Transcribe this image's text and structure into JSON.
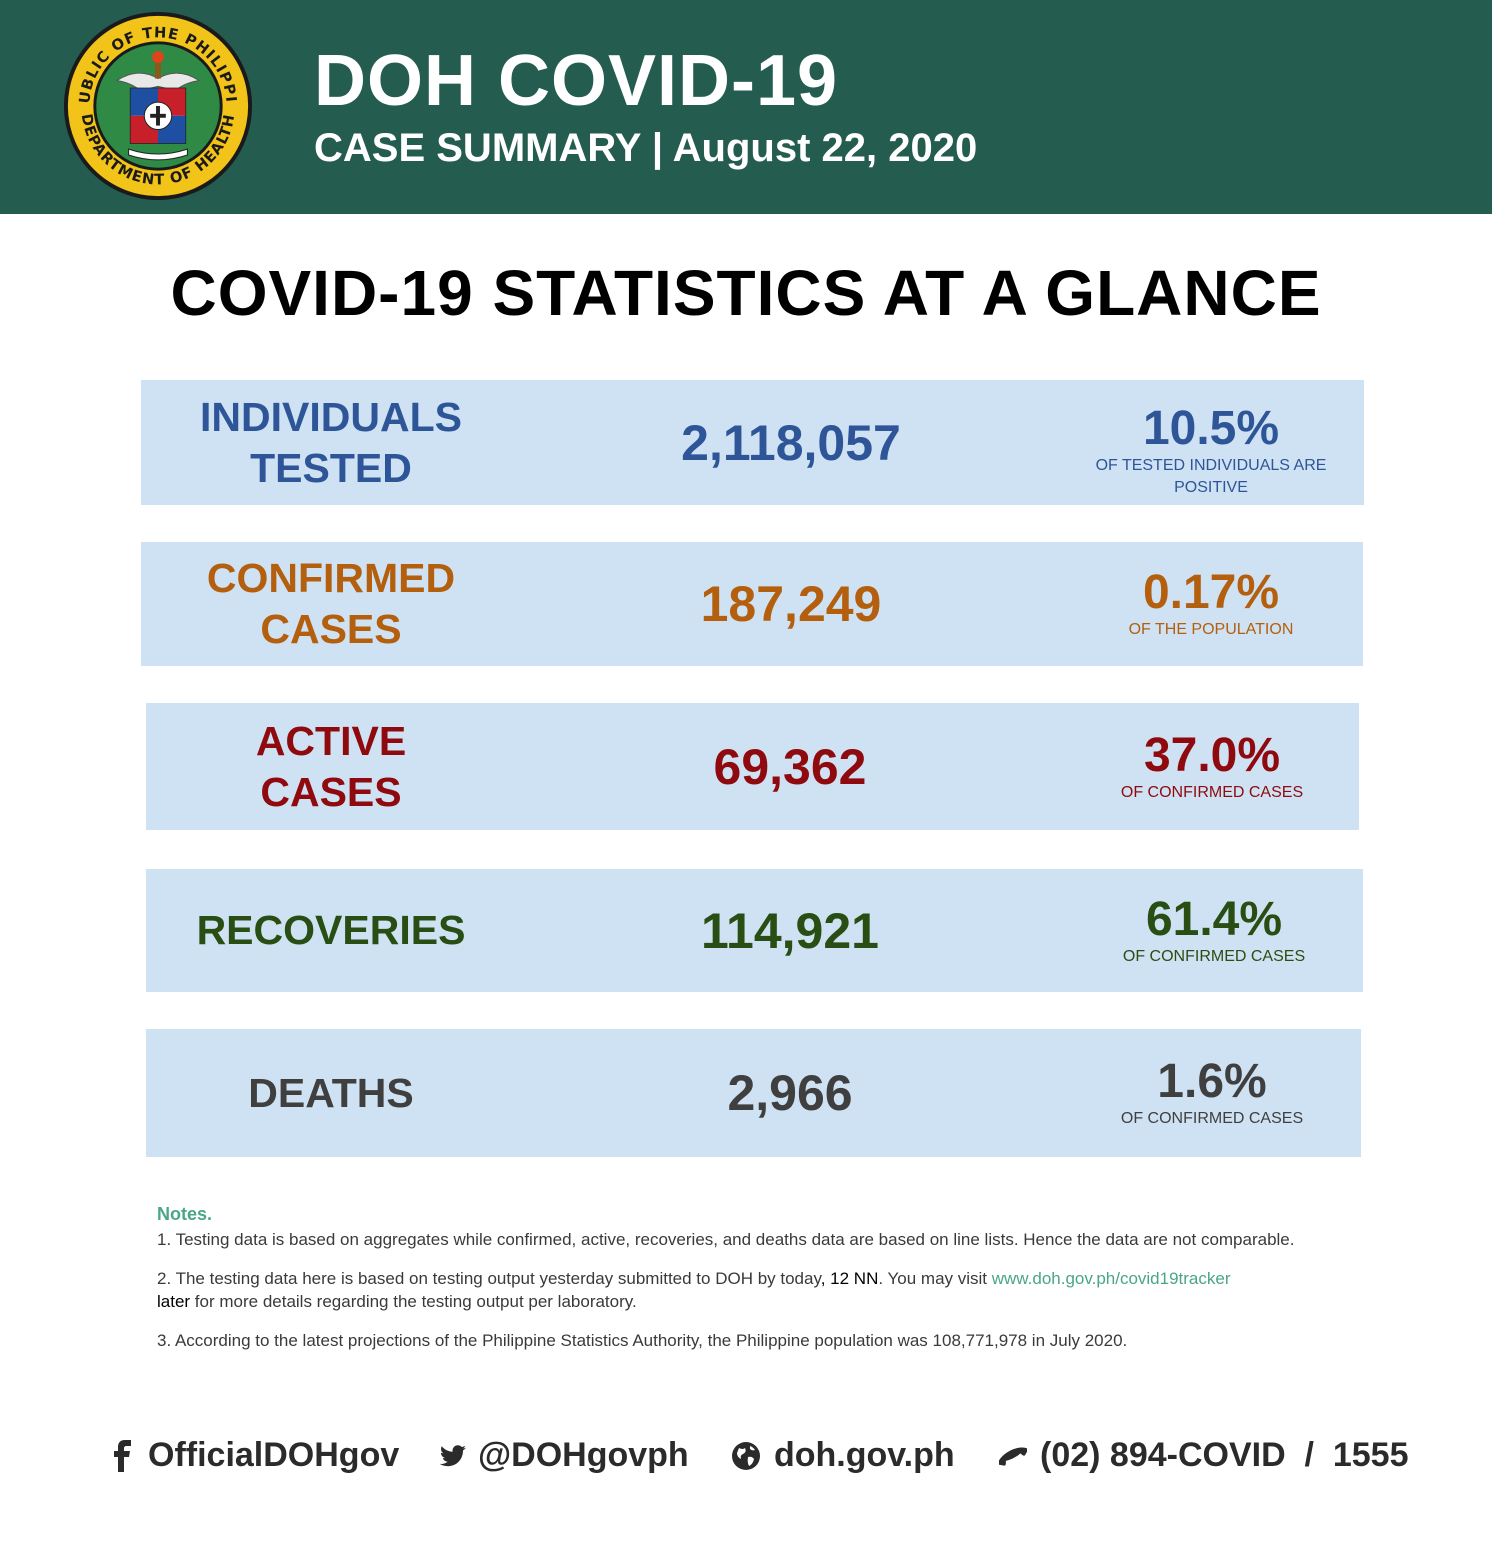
{
  "header": {
    "title": "DOH COVID-19",
    "subtitle": "CASE SUMMARY | August 22, 2020",
    "seal": {
      "top_text": "REPUBLIC OF THE PHILIPPINES",
      "bottom_text": "DEPARTMENT OF HEALTH",
      "icon": "doh-seal-icon"
    }
  },
  "main_title": "COVID-19 STATISTICS AT A GLANCE",
  "stats": [
    {
      "label_line1": "INDIVIDUALS",
      "label_line2": "TESTED",
      "value": "2,118,057",
      "percent": "10.5%",
      "note": "OF TESTED INDIVIDUALS ARE POSITIVE",
      "color": "#2e5597"
    },
    {
      "label_line1": "CONFIRMED",
      "label_line2": "CASES",
      "value": "187,249",
      "percent": "0.17%",
      "note": "OF THE POPULATION",
      "color": "#b35f0e"
    },
    {
      "label_line1": "ACTIVE",
      "label_line2": "CASES",
      "value": "69,362",
      "percent": "37.0%",
      "note": "OF CONFIRMED CASES",
      "color": "#8f0a0e"
    },
    {
      "label_line1": "RECOVERIES",
      "label_line2": "",
      "value": "114,921",
      "percent": "61.4%",
      "note": "OF CONFIRMED CASES",
      "color": "#284e13"
    },
    {
      "label_line1": "DEATHS",
      "label_line2": "",
      "value": "2,966",
      "percent": "1.6%",
      "note": "OF CONFIRMED CASES",
      "color": "#3f3f3f"
    }
  ],
  "notes": {
    "heading": "Notes.",
    "note1": "1. Testing data is based on aggregates while confirmed, active, recoveries, and deaths data are based on line lists. Hence the data are not comparable.",
    "note2_a": "2. The testing data here is based on testing output yesterday submitted to DOH by today",
    "note2_b": ", 12 NN",
    "note2_c": ". You may visit ",
    "note2_link": "www.doh.gov.ph/covid19tracker",
    "note2_d": "later",
    "note2_e": " for more details regarding the testing output per laboratory.",
    "note3": "3. According to the latest projections of the Philippine Statistics Authority, the Philippine population was 108,771,978 in July 2020."
  },
  "footer": {
    "facebook": "OfficialDOHgov",
    "twitter": "@DOHgovph",
    "website": "doh.gov.ph",
    "phone": "(02) 894-COVID  /  1555",
    "icons": [
      "facebook-icon",
      "twitter-icon",
      "globe-icon",
      "phone-icon"
    ]
  },
  "colors": {
    "header_bg": "#255c50",
    "row_bg": "#cfe2f3",
    "notes_accent": "#4aa589"
  }
}
